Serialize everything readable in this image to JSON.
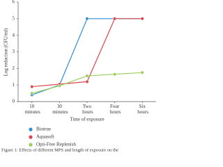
{
  "chart_data": {
    "type": "line",
    "y_label": "Log reduction (CFU/ml)",
    "x_label": "Time of exposure",
    "caption": "Figure 1: Effects of different MPS and length of exposure on the",
    "categories": [
      "10 minutes",
      "30 minutes",
      "Two hours",
      "Four hours",
      "Six hours"
    ],
    "series": [
      {
        "name": "Biotrue",
        "color": "#2f8fd0",
        "values": [
          0.4,
          1.0,
          5,
          5,
          5
        ]
      },
      {
        "name": "Aquasoft",
        "color": "#d9454c",
        "values": [
          0.9,
          1.05,
          1.2,
          5,
          5
        ]
      },
      {
        "name": "Opti-Free Replenish",
        "color": "#9ccc5a",
        "values": [
          0.5,
          0.95,
          1.55,
          1.65,
          1.75
        ]
      }
    ],
    "ylim": [
      0,
      6
    ],
    "yticks": [
      0,
      1,
      2,
      3,
      4,
      5,
      6
    ],
    "grid": false
  }
}
